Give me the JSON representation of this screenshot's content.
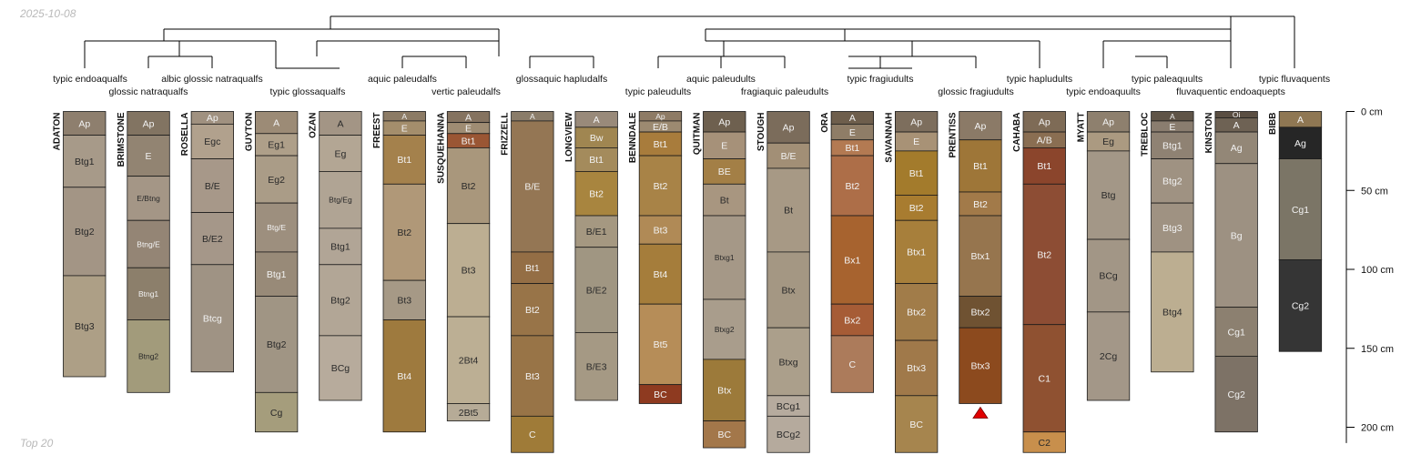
{
  "header": {
    "date": "2025-10-08"
  },
  "footer": {
    "note": "Top 20"
  },
  "chart_data": {
    "type": "soil-profile-sketch",
    "depth_unit": "cm",
    "depth_axis": {
      "ylim": [
        0,
        210
      ],
      "ticks": [
        0,
        50,
        100,
        150,
        200
      ],
      "tick_labels": [
        "0 cm",
        "50 cm",
        "100 cm",
        "150 cm",
        "200 cm"
      ]
    },
    "taxa_labels": [
      "typic endoaqualfs",
      "glossic natraqualfs",
      "albic glossic natraqualfs",
      "typic glossaqualfs",
      "aquic paleudalfs",
      "vertic paleudalfs",
      "glossaquic hapludalfs",
      "typic paleudults",
      "aquic paleudults",
      "fragiaquic paleudults",
      "typic fragiudults",
      "glossic fragiudults",
      "typic hapludults",
      "typic endoaquults",
      "typic paleaquults",
      "fluvaquentic endoaquepts",
      "typic fluvaquents"
    ],
    "profiles": [
      {
        "name": "ADATON",
        "horizons": [
          {
            "name": "Ap",
            "top": 0,
            "bottom": 15,
            "color": "#8e7f6e"
          },
          {
            "name": "Btg1",
            "top": 15,
            "bottom": 48,
            "color": "#a79a89"
          },
          {
            "name": "Btg2",
            "top": 48,
            "bottom": 104,
            "color": "#a39585"
          },
          {
            "name": "Btg3",
            "top": 104,
            "bottom": 168,
            "color": "#ad9f86"
          }
        ]
      },
      {
        "name": "BRIMSTONE",
        "horizons": [
          {
            "name": "Ap",
            "top": 0,
            "bottom": 15,
            "color": "#827462"
          },
          {
            "name": "E",
            "top": 15,
            "bottom": 41,
            "color": "#928472"
          },
          {
            "name": "E/Btng",
            "top": 41,
            "bottom": 69,
            "color": "#a49686"
          },
          {
            "name": "Btng/E",
            "top": 69,
            "bottom": 99,
            "color": "#948575"
          },
          {
            "name": "Btng1",
            "top": 99,
            "bottom": 132,
            "color": "#8c7f6b"
          },
          {
            "name": "Btng2",
            "top": 132,
            "bottom": 178,
            "color": "#a29b7b"
          }
        ]
      },
      {
        "name": "ROSELLA",
        "horizons": [
          {
            "name": "Ap",
            "top": 0,
            "bottom": 8,
            "color": "#a09180"
          },
          {
            "name": "Egc",
            "top": 8,
            "bottom": 30,
            "color": "#b1a18d"
          },
          {
            "name": "B/E",
            "top": 30,
            "bottom": 64,
            "color": "#a79889"
          },
          {
            "name": "B/E2",
            "top": 64,
            "bottom": 97,
            "color": "#a59789"
          },
          {
            "name": "Btcg",
            "top": 97,
            "bottom": 165,
            "color": "#9f9384"
          }
        ]
      },
      {
        "name": "GUYTON",
        "horizons": [
          {
            "name": "A",
            "top": 0,
            "bottom": 14,
            "color": "#9c8b76"
          },
          {
            "name": "Eg1",
            "top": 14,
            "bottom": 28,
            "color": "#ae9f89"
          },
          {
            "name": "Eg2",
            "top": 28,
            "bottom": 58,
            "color": "#aa9c87"
          },
          {
            "name": "Btg/E",
            "top": 58,
            "bottom": 89,
            "color": "#9d8f7e"
          },
          {
            "name": "Btg1",
            "top": 89,
            "bottom": 117,
            "color": "#988a78"
          },
          {
            "name": "Btg2",
            "top": 117,
            "bottom": 178,
            "color": "#a09584"
          },
          {
            "name": "Cg",
            "top": 178,
            "bottom": 203,
            "color": "#a59d7c"
          }
        ]
      },
      {
        "name": "OZAN",
        "horizons": [
          {
            "name": "A",
            "top": 0,
            "bottom": 15,
            "color": "#a39585"
          },
          {
            "name": "Eg",
            "top": 15,
            "bottom": 38,
            "color": "#b3a694"
          },
          {
            "name": "Btg/Eg",
            "top": 38,
            "bottom": 74,
            "color": "#b0a494"
          },
          {
            "name": "Btg1",
            "top": 74,
            "bottom": 97,
            "color": "#b1a596"
          },
          {
            "name": "Btg2",
            "top": 97,
            "bottom": 142,
            "color": "#b2a696"
          },
          {
            "name": "BCg",
            "top": 142,
            "bottom": 183,
            "color": "#b7ab9c"
          }
        ]
      },
      {
        "name": "FREEST",
        "horizons": [
          {
            "name": "A",
            "top": 0,
            "bottom": 6,
            "color": "#8c7b65"
          },
          {
            "name": "E",
            "top": 6,
            "bottom": 15,
            "color": "#a48e6c"
          },
          {
            "name": "Bt1",
            "top": 15,
            "bottom": 46,
            "color": "#a4814c"
          },
          {
            "name": "Bt2",
            "top": 46,
            "bottom": 107,
            "color": "#b09878"
          },
          {
            "name": "Bt3",
            "top": 107,
            "bottom": 132,
            "color": "#a69986"
          },
          {
            "name": "Bt4",
            "top": 132,
            "bottom": 203,
            "color": "#9e7a3e"
          }
        ]
      },
      {
        "name": "SUSQUEHANNA",
        "horizons": [
          {
            "name": "A",
            "top": 0,
            "bottom": 7,
            "color": "#857360"
          },
          {
            "name": "E",
            "top": 7,
            "bottom": 14,
            "color": "#9f8c73"
          },
          {
            "name": "Bt1",
            "top": 14,
            "bottom": 23,
            "color": "#9a5634"
          },
          {
            "name": "Bt2",
            "top": 23,
            "bottom": 71,
            "color": "#a9977c"
          },
          {
            "name": "Bt3",
            "top": 71,
            "bottom": 130,
            "color": "#bcae92"
          },
          {
            "name": "2Bt4",
            "top": 130,
            "bottom": 185,
            "color": "#bcaf94"
          },
          {
            "name": "2Bt5",
            "top": 185,
            "bottom": 196,
            "color": "#b6ab97"
          }
        ]
      },
      {
        "name": "FRIZZELL",
        "horizons": [
          {
            "name": "A",
            "top": 0,
            "bottom": 6,
            "color": "#8a7c69"
          },
          {
            "name": "B/E",
            "top": 6,
            "bottom": 89,
            "color": "#947654"
          },
          {
            "name": "Bt1",
            "top": 89,
            "bottom": 109,
            "color": "#946e45"
          },
          {
            "name": "Bt2",
            "top": 109,
            "bottom": 142,
            "color": "#987448"
          },
          {
            "name": "Bt3",
            "top": 142,
            "bottom": 193,
            "color": "#987447"
          },
          {
            "name": "C",
            "top": 193,
            "bottom": 216,
            "color": "#9f7b38"
          }
        ]
      },
      {
        "name": "LONGVIEW",
        "horizons": [
          {
            "name": "A",
            "top": 0,
            "bottom": 10,
            "color": "#998a7a"
          },
          {
            "name": "Bw",
            "top": 10,
            "bottom": 23,
            "color": "#a08651"
          },
          {
            "name": "Bt1",
            "top": 23,
            "bottom": 38,
            "color": "#a48b5c"
          },
          {
            "name": "Bt2",
            "top": 38,
            "bottom": 66,
            "color": "#a8853f"
          },
          {
            "name": "B/E1",
            "top": 66,
            "bottom": 86,
            "color": "#a59881"
          },
          {
            "name": "B/E2",
            "top": 86,
            "bottom": 140,
            "color": "#a09682"
          },
          {
            "name": "B/E3",
            "top": 140,
            "bottom": 183,
            "color": "#a59984"
          }
        ]
      },
      {
        "name": "BENNDALE",
        "horizons": [
          {
            "name": "Ap",
            "top": 0,
            "bottom": 6,
            "color": "#8e7b65"
          },
          {
            "name": "E/B",
            "top": 6,
            "bottom": 13,
            "color": "#9c8a71"
          },
          {
            "name": "Bt1",
            "top": 13,
            "bottom": 28,
            "color": "#a87c3c"
          },
          {
            "name": "Bt2",
            "top": 28,
            "bottom": 66,
            "color": "#a88347"
          },
          {
            "name": "Bt3",
            "top": 66,
            "bottom": 84,
            "color": "#b08a56"
          },
          {
            "name": "Bt4",
            "top": 84,
            "bottom": 122,
            "color": "#a57d3b"
          },
          {
            "name": "Bt5",
            "top": 122,
            "bottom": 173,
            "color": "#b68d58"
          },
          {
            "name": "BC",
            "top": 173,
            "bottom": 185,
            "color": "#8e3a20"
          }
        ]
      },
      {
        "name": "QUITMAN",
        "horizons": [
          {
            "name": "Ap",
            "top": 0,
            "bottom": 13,
            "color": "#6e604f"
          },
          {
            "name": "E",
            "top": 13,
            "bottom": 30,
            "color": "#a69179"
          },
          {
            "name": "BE",
            "top": 30,
            "bottom": 46,
            "color": "#a37f46"
          },
          {
            "name": "Bt",
            "top": 46,
            "bottom": 66,
            "color": "#a89680"
          },
          {
            "name": "Btxg1",
            "top": 66,
            "bottom": 119,
            "color": "#a59887"
          },
          {
            "name": "Btxg2",
            "top": 119,
            "bottom": 157,
            "color": "#a99d8c"
          },
          {
            "name": "Btx",
            "top": 157,
            "bottom": 196,
            "color": "#9c7a3a"
          },
          {
            "name": "BC",
            "top": 196,
            "bottom": 213,
            "color": "#a3774a"
          }
        ]
      },
      {
        "name": "STOUGH",
        "horizons": [
          {
            "name": "Ap",
            "top": 0,
            "bottom": 20,
            "color": "#7b6c5b"
          },
          {
            "name": "B/E",
            "top": 20,
            "bottom": 36,
            "color": "#a28f76"
          },
          {
            "name": "Bt",
            "top": 36,
            "bottom": 89,
            "color": "#a79985"
          },
          {
            "name": "Btx",
            "top": 89,
            "bottom": 137,
            "color": "#a49783"
          },
          {
            "name": "Btxg",
            "top": 137,
            "bottom": 180,
            "color": "#ab9f8b"
          },
          {
            "name": "BCg1",
            "top": 180,
            "bottom": 193,
            "color": "#b6ab9e"
          },
          {
            "name": "BCg2",
            "top": 193,
            "bottom": 216,
            "color": "#b5aa9d"
          }
        ]
      },
      {
        "name": "ORA",
        "horizons": [
          {
            "name": "A",
            "top": 0,
            "bottom": 8,
            "color": "#6e5e4c"
          },
          {
            "name": "E",
            "top": 8,
            "bottom": 18,
            "color": "#8f7d67"
          },
          {
            "name": "Bt1",
            "top": 18,
            "bottom": 28,
            "color": "#b37a52"
          },
          {
            "name": "Bt2",
            "top": 28,
            "bottom": 66,
            "color": "#ad6e48"
          },
          {
            "name": "Bx1",
            "top": 66,
            "bottom": 122,
            "color": "#a7632f"
          },
          {
            "name": "Bx2",
            "top": 122,
            "bottom": 142,
            "color": "#a65c36"
          },
          {
            "name": "C",
            "top": 142,
            "bottom": 178,
            "color": "#ac7b5b"
          }
        ]
      },
      {
        "name": "SAVANNAH",
        "horizons": [
          {
            "name": "Ap",
            "top": 0,
            "bottom": 13,
            "color": "#7d6e5d"
          },
          {
            "name": "E",
            "top": 13,
            "bottom": 25,
            "color": "#a89276"
          },
          {
            "name": "Bt1",
            "top": 25,
            "bottom": 53,
            "color": "#a37b2c"
          },
          {
            "name": "Bt2",
            "top": 53,
            "bottom": 69,
            "color": "#a87c30"
          },
          {
            "name": "Btx1",
            "top": 69,
            "bottom": 109,
            "color": "#a77f3b"
          },
          {
            "name": "Btx2",
            "top": 109,
            "bottom": 145,
            "color": "#a17c49"
          },
          {
            "name": "Btx3",
            "top": 145,
            "bottom": 180,
            "color": "#a0794a"
          },
          {
            "name": "BC",
            "top": 180,
            "bottom": 216,
            "color": "#a6854e"
          }
        ]
      },
      {
        "name": "PRENTISS",
        "triangle": true,
        "horizons": [
          {
            "name": "Ap",
            "top": 0,
            "bottom": 18,
            "color": "#8b7a67"
          },
          {
            "name": "Bt1",
            "top": 18,
            "bottom": 51,
            "color": "#9e7638"
          },
          {
            "name": "Bt2",
            "top": 51,
            "bottom": 66,
            "color": "#a27a49"
          },
          {
            "name": "Btx1",
            "top": 66,
            "bottom": 117,
            "color": "#96754e"
          },
          {
            "name": "Btx2",
            "top": 117,
            "bottom": 137,
            "color": "#6f5232"
          },
          {
            "name": "Btx3",
            "top": 137,
            "bottom": 185,
            "color": "#8c4a1e"
          }
        ]
      },
      {
        "name": "CAHABA",
        "horizons": [
          {
            "name": "Ap",
            "top": 0,
            "bottom": 13,
            "color": "#7e6b56"
          },
          {
            "name": "A/B",
            "top": 13,
            "bottom": 23,
            "color": "#8a6e52"
          },
          {
            "name": "Bt1",
            "top": 23,
            "bottom": 46,
            "color": "#8b452c"
          },
          {
            "name": "Bt2",
            "top": 46,
            "bottom": 135,
            "color": "#8d4d34"
          },
          {
            "name": "C1",
            "top": 135,
            "bottom": 203,
            "color": "#8f5131"
          },
          {
            "name": "C2",
            "top": 203,
            "bottom": 216,
            "color": "#c88f4c"
          }
        ]
      },
      {
        "name": "MYATT",
        "horizons": [
          {
            "name": "Ap",
            "top": 0,
            "bottom": 13,
            "color": "#8e806e"
          },
          {
            "name": "Eg",
            "top": 13,
            "bottom": 25,
            "color": "#ab9a81"
          },
          {
            "name": "Btg",
            "top": 25,
            "bottom": 81,
            "color": "#a39787"
          },
          {
            "name": "BCg",
            "top": 81,
            "bottom": 127,
            "color": "#a29686"
          },
          {
            "name": "2Cg",
            "top": 127,
            "bottom": 183,
            "color": "#a39788"
          }
        ]
      },
      {
        "name": "TREBLOC",
        "horizons": [
          {
            "name": "A",
            "top": 0,
            "bottom": 6,
            "color": "#5f5447"
          },
          {
            "name": "E",
            "top": 6,
            "bottom": 13,
            "color": "#8a7d6f"
          },
          {
            "name": "Btg1",
            "top": 13,
            "bottom": 30,
            "color": "#8f8273"
          },
          {
            "name": "Btg2",
            "top": 30,
            "bottom": 58,
            "color": "#9f9282"
          },
          {
            "name": "Btg3",
            "top": 58,
            "bottom": 89,
            "color": "#9f9282"
          },
          {
            "name": "Btg4",
            "top": 89,
            "bottom": 165,
            "color": "#bcae91"
          }
        ]
      },
      {
        "name": "KINSTON",
        "horizons": [
          {
            "name": "Oi",
            "top": 0,
            "bottom": 4,
            "color": "#5a4e42"
          },
          {
            "name": "A",
            "top": 4,
            "bottom": 13,
            "color": "#6e6254"
          },
          {
            "name": "Ag",
            "top": 13,
            "bottom": 33,
            "color": "#938777"
          },
          {
            "name": "Bg",
            "top": 33,
            "bottom": 124,
            "color": "#9d9182"
          },
          {
            "name": "Cg1",
            "top": 124,
            "bottom": 155,
            "color": "#8c8070"
          },
          {
            "name": "Cg2",
            "top": 155,
            "bottom": 203,
            "color": "#7d7266"
          }
        ]
      },
      {
        "name": "BIBB",
        "horizons": [
          {
            "name": "A",
            "top": 0,
            "bottom": 10,
            "color": "#8f7753"
          },
          {
            "name": "Ag",
            "top": 10,
            "bottom": 30,
            "color": "#262626"
          },
          {
            "name": "Cg1",
            "top": 30,
            "bottom": 94,
            "color": "#7b7566"
          },
          {
            "name": "Cg2",
            "top": 94,
            "bottom": 152,
            "color": "#353535"
          }
        ]
      }
    ]
  }
}
